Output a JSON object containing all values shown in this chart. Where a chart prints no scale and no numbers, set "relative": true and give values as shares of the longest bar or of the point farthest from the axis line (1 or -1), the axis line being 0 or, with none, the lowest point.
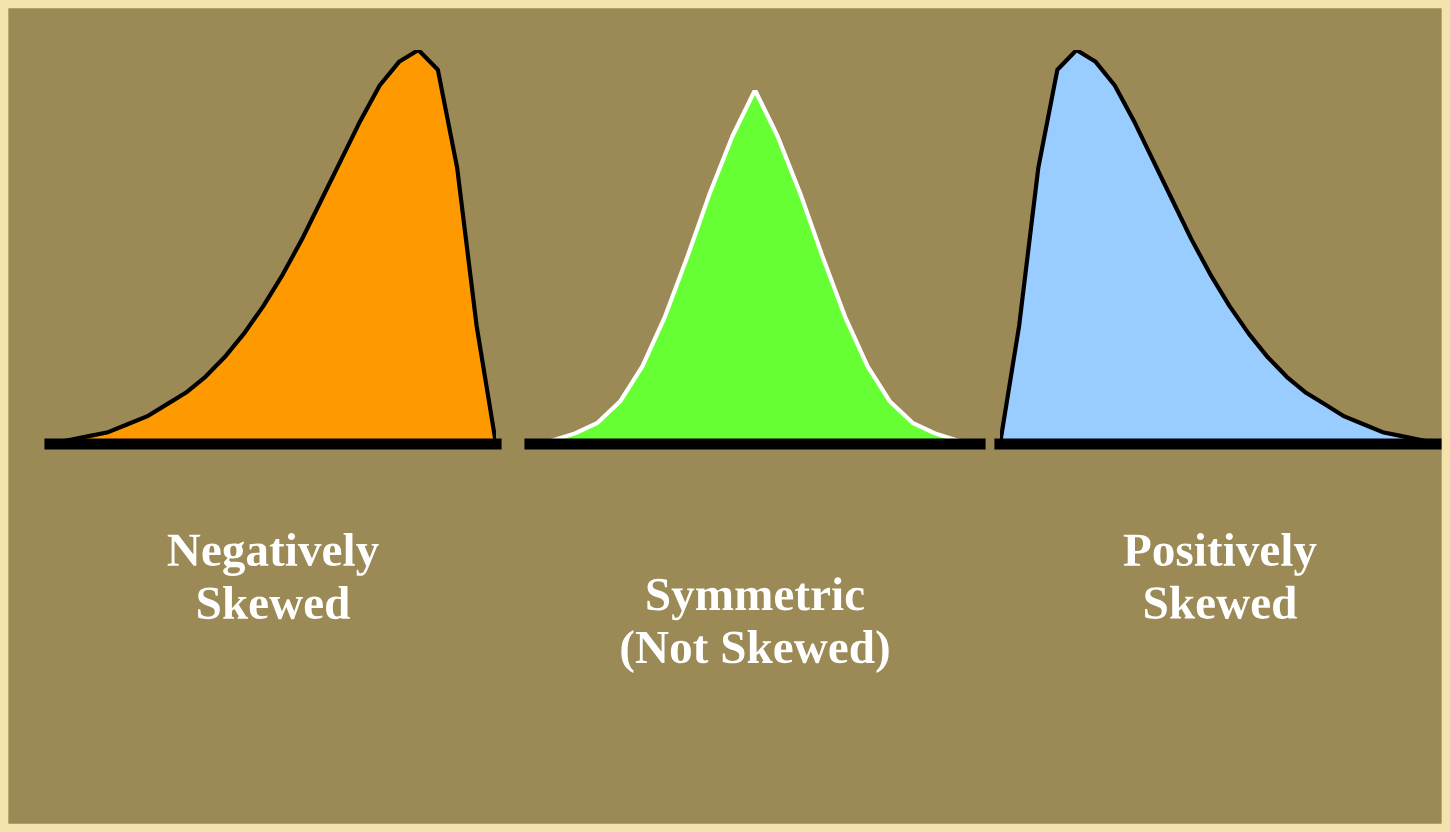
{
  "chart_data": [
    {
      "type": "area",
      "relative": true,
      "xlabel": "Negatively\nSkewed",
      "color": "#ff9900",
      "categories": [
        null,
        null,
        null,
        null,
        null,
        null,
        null,
        null,
        null,
        null,
        null,
        null,
        null,
        null,
        null,
        null,
        null,
        null,
        null,
        null,
        null,
        null,
        null,
        null
      ],
      "values": [
        0.0,
        0.01,
        0.02,
        0.03,
        0.05,
        0.07,
        0.1,
        0.13,
        0.17,
        0.22,
        0.28,
        0.35,
        0.43,
        0.52,
        0.62,
        0.72,
        0.82,
        0.91,
        0.97,
        1.0,
        0.95,
        0.7,
        0.3,
        0.0
      ]
    },
    {
      "type": "area",
      "relative": true,
      "xlabel": "Symmetric\n(Not Skewed)",
      "color": "#66ff33",
      "categories": [
        null,
        null,
        null,
        null,
        null,
        null,
        null,
        null,
        null,
        null,
        null,
        null,
        null,
        null,
        null,
        null,
        null,
        null,
        null,
        null,
        null
      ],
      "values": [
        0.0,
        0.01,
        0.03,
        0.06,
        0.12,
        0.22,
        0.36,
        0.53,
        0.71,
        0.87,
        1.0,
        0.87,
        0.71,
        0.53,
        0.36,
        0.22,
        0.12,
        0.06,
        0.03,
        0.01,
        0.0
      ]
    },
    {
      "type": "area",
      "relative": true,
      "xlabel": "Positively\nSkewed",
      "color": "#99ccff",
      "categories": [
        null,
        null,
        null,
        null,
        null,
        null,
        null,
        null,
        null,
        null,
        null,
        null,
        null,
        null,
        null,
        null,
        null,
        null,
        null,
        null,
        null,
        null,
        null,
        null
      ],
      "values": [
        0.0,
        0.3,
        0.7,
        0.95,
        1.0,
        0.97,
        0.91,
        0.82,
        0.72,
        0.62,
        0.52,
        0.43,
        0.35,
        0.28,
        0.22,
        0.17,
        0.13,
        0.1,
        0.07,
        0.05,
        0.03,
        0.02,
        0.01,
        0.0
      ]
    }
  ]
}
